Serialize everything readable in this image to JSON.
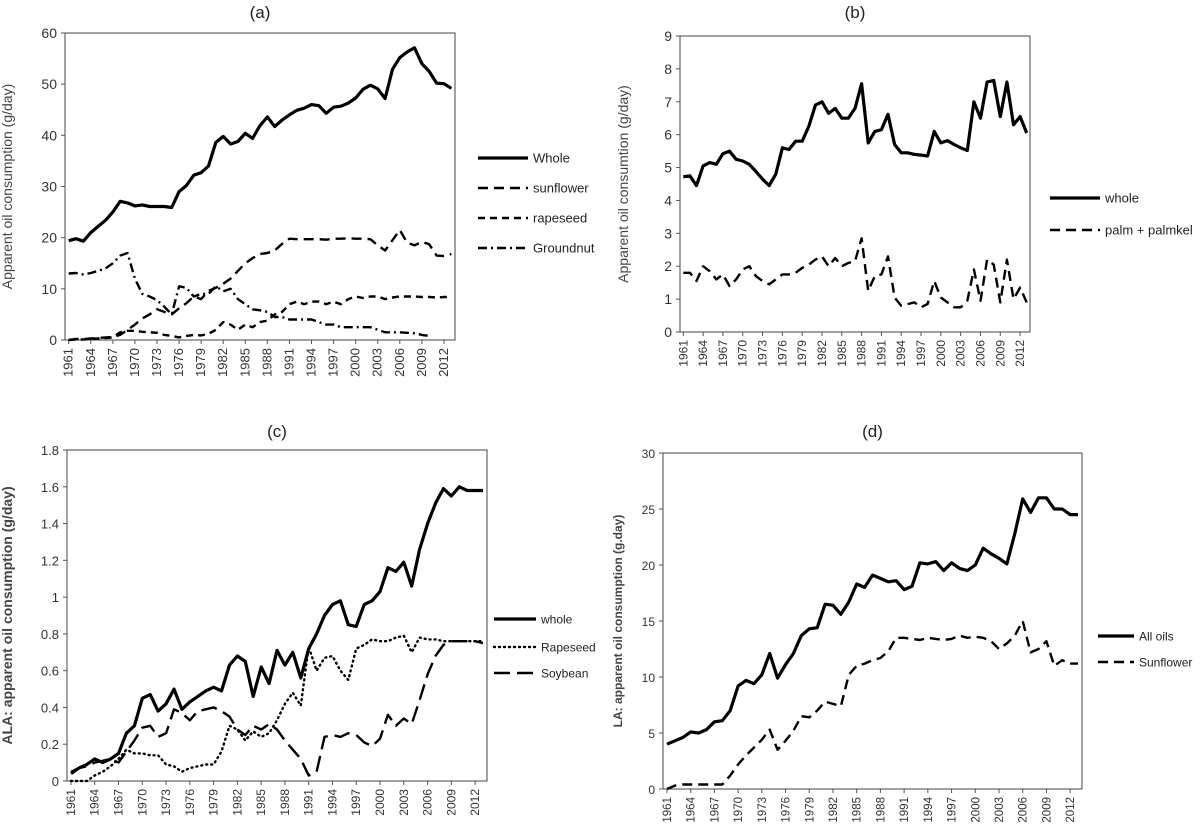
{
  "chart_data": [
    {
      "type": "line",
      "panel_label": "(a)",
      "xlabel": "",
      "ylabel": "Apparent oil consumption (g/day)",
      "ylim": [
        0,
        60
      ],
      "y_ticks": [
        0,
        10,
        20,
        30,
        40,
        50,
        60
      ],
      "x_tick_labels": [
        "1961",
        "1964",
        "1967",
        "1970",
        "1973",
        "1976",
        "1979",
        "1982",
        "1985",
        "1988",
        "1991",
        "1994",
        "1997",
        "2000",
        "2003",
        "2006",
        "2009",
        "2012"
      ],
      "grid": false,
      "legend_position": "right",
      "series": [
        {
          "name": "Whole",
          "style": "solid",
          "x_start": 1961,
          "values": [
            19.4,
            19.8,
            19.3,
            21.0,
            22.2,
            23.4,
            25.0,
            27.1,
            26.8,
            26.2,
            26.4,
            26.1,
            26.1,
            26.1,
            25.9,
            29.0,
            30.2,
            32.2,
            32.7,
            34.0,
            38.6,
            39.8,
            38.3,
            38.8,
            40.4,
            39.4,
            41.9,
            43.6,
            41.7,
            43.0,
            44.0,
            44.9,
            45.3,
            46.0,
            45.8,
            44.3,
            45.5,
            45.7,
            46.3,
            47.3,
            49.0,
            49.8,
            49.1,
            47.2,
            52.9,
            55.2,
            56.3,
            57.1,
            54.0,
            52.5,
            50.2,
            50.1,
            49.2
          ]
        },
        {
          "name": "sunflower",
          "style": "dashed",
          "x_start": 1961,
          "values": [
            0.0,
            0.2,
            0.2,
            0.3,
            0.4,
            0.5,
            0.6,
            1.0,
            2.0,
            3.0,
            4.2,
            5.0,
            6.0,
            5.5,
            5.0,
            6.2,
            7.2,
            8.5,
            8.0,
            9.6,
            10.2,
            11.0,
            12.0,
            13.5,
            15.0,
            16.0,
            16.8,
            17.0,
            17.5,
            18.8,
            19.8,
            19.7,
            19.7,
            19.7,
            19.7,
            19.6,
            19.8,
            19.8,
            19.9,
            19.8,
            19.8,
            19.7,
            18.5,
            17.5,
            19.5,
            21.5,
            19.0,
            18.5,
            19.2,
            18.7,
            16.5,
            16.4,
            16.8
          ]
        },
        {
          "name": "rapeseed",
          "style": "dashed-short",
          "x_start": 1961,
          "values": [
            0.0,
            0.1,
            0.1,
            0.2,
            0.3,
            0.4,
            0.5,
            1.5,
            1.8,
            1.8,
            1.6,
            1.5,
            1.4,
            1.0,
            0.8,
            0.5,
            0.8,
            1.0,
            0.9,
            1.2,
            2.0,
            3.5,
            3.0,
            2.0,
            3.0,
            2.5,
            3.5,
            3.8,
            5.0,
            5.5,
            7.0,
            7.5,
            7.0,
            7.5,
            7.5,
            7.0,
            7.5,
            7.0,
            8.0,
            8.5,
            8.2,
            8.5,
            8.5,
            8.0,
            8.3,
            8.5,
            8.5,
            8.5,
            8.4,
            8.4,
            8.3,
            8.4,
            8.4
          ]
        },
        {
          "name": "Groundnut",
          "style": "dash-dot",
          "x_start": 1961,
          "x_end": 2010,
          "values": [
            13.0,
            13.1,
            12.8,
            13.1,
            13.5,
            14.0,
            15.0,
            16.5,
            17.0,
            12.0,
            9.0,
            8.5,
            7.8,
            6.5,
            5.0,
            10.5,
            10.2,
            8.5,
            9.0,
            9.0,
            10.5,
            9.5,
            10.0,
            8.0,
            7.0,
            6.0,
            5.8,
            5.5,
            4.5,
            4.5,
            4.0,
            4.0,
            4.0,
            4.0,
            3.5,
            3.0,
            3.0,
            2.5,
            2.5,
            2.5,
            2.5,
            2.5,
            2.0,
            1.5,
            1.5,
            1.5,
            1.4,
            1.3,
            1.0,
            0.8
          ]
        }
      ]
    },
    {
      "type": "line",
      "panel_label": "(b)",
      "xlabel": "",
      "ylabel": "Apparent oil consumtion (g/day)",
      "ylim": [
        0,
        9
      ],
      "y_ticks": [
        0,
        1,
        2,
        3,
        4,
        5,
        6,
        7,
        8,
        9
      ],
      "x_tick_labels": [
        "1961",
        "1964",
        "1967",
        "1970",
        "1973",
        "1976",
        "1979",
        "1982",
        "1985",
        "1988",
        "1991",
        "1994",
        "1997",
        "2000",
        "2003",
        "2006",
        "2009",
        "2012"
      ],
      "grid": false,
      "legend_position": "right",
      "series": [
        {
          "name": "whole",
          "style": "solid",
          "x_start": 1961,
          "values": [
            4.72,
            4.75,
            4.45,
            5.05,
            5.15,
            5.1,
            5.42,
            5.5,
            5.25,
            5.2,
            5.1,
            4.88,
            4.65,
            4.45,
            4.8,
            5.6,
            5.55,
            5.8,
            5.8,
            6.25,
            6.9,
            7.0,
            6.65,
            6.8,
            6.5,
            6.5,
            6.8,
            7.55,
            5.75,
            6.1,
            6.15,
            6.62,
            5.7,
            5.45,
            5.45,
            5.4,
            5.38,
            5.35,
            6.1,
            5.75,
            5.82,
            5.7,
            5.6,
            5.52,
            7.0,
            6.5,
            7.6,
            7.65,
            6.55,
            7.6,
            6.3,
            6.55,
            6.05
          ]
        },
        {
          "name": "palm + palmkel",
          "style": "dashed",
          "x_start": 1961,
          "values": [
            1.8,
            1.8,
            1.55,
            2.0,
            1.85,
            1.6,
            1.75,
            1.4,
            1.6,
            1.9,
            2.0,
            1.7,
            1.55,
            1.45,
            1.6,
            1.75,
            1.75,
            1.8,
            1.95,
            2.05,
            2.2,
            2.3,
            2.0,
            2.25,
            2.0,
            2.1,
            2.15,
            2.85,
            1.25,
            1.7,
            1.75,
            2.3,
            1.05,
            0.8,
            0.85,
            0.9,
            0.75,
            0.85,
            1.55,
            1.05,
            0.9,
            0.75,
            0.75,
            0.95,
            1.9,
            0.95,
            2.2,
            2.05,
            0.9,
            2.2,
            1.0,
            1.35,
            0.9
          ]
        }
      ]
    },
    {
      "type": "line",
      "panel_label": "(c)",
      "xlabel": "",
      "ylabel": "ALA: apparent oil consumption (g/day)",
      "ylim": [
        0,
        1.8
      ],
      "y_ticks": [
        "0",
        "0.2",
        "0.4",
        "0.6",
        "0.8",
        "1",
        "1.2",
        "1.4",
        "1.6",
        "1.8"
      ],
      "x_tick_labels": [
        "1961",
        "1964",
        "1967",
        "1970",
        "1973",
        "1976",
        "1979",
        "1982",
        "1985",
        "1988",
        "1991",
        "1994",
        "1997",
        "2000",
        "2003",
        "2006",
        "2009",
        "2012"
      ],
      "grid": false,
      "legend_position": "right",
      "series": [
        {
          "name": "whole",
          "style": "solid",
          "x_start": 1961,
          "values": [
            0.04,
            0.07,
            0.09,
            0.12,
            0.1,
            0.12,
            0.15,
            0.26,
            0.3,
            0.45,
            0.47,
            0.38,
            0.42,
            0.5,
            0.39,
            0.43,
            0.46,
            0.49,
            0.51,
            0.49,
            0.63,
            0.68,
            0.65,
            0.46,
            0.62,
            0.53,
            0.71,
            0.63,
            0.7,
            0.56,
            0.72,
            0.8,
            0.9,
            0.96,
            0.98,
            0.85,
            0.84,
            0.96,
            0.98,
            1.03,
            1.16,
            1.14,
            1.19,
            1.06,
            1.26,
            1.4,
            1.51,
            1.59,
            1.55,
            1.6,
            1.58,
            1.58,
            1.58
          ]
        },
        {
          "name": "Rapeseed",
          "style": "dotted",
          "x_start": 1961,
          "values": [
            0.0,
            0.0,
            0.0,
            0.03,
            0.05,
            0.08,
            0.12,
            0.17,
            0.15,
            0.15,
            0.14,
            0.14,
            0.09,
            0.08,
            0.05,
            0.07,
            0.08,
            0.09,
            0.09,
            0.16,
            0.3,
            0.28,
            0.22,
            0.27,
            0.24,
            0.26,
            0.33,
            0.42,
            0.48,
            0.41,
            0.73,
            0.6,
            0.67,
            0.68,
            0.6,
            0.55,
            0.72,
            0.74,
            0.77,
            0.76,
            0.76,
            0.78,
            0.79,
            0.7,
            0.78,
            0.77,
            0.77,
            0.76,
            0.76,
            0.76,
            0.76,
            0.76,
            0.76
          ]
        },
        {
          "name": "Soybean",
          "style": "long-dash",
          "x_start": 1961,
          "values": [
            0.05,
            0.07,
            0.08,
            0.1,
            0.11,
            0.12,
            0.1,
            0.16,
            0.22,
            0.29,
            0.3,
            0.24,
            0.26,
            0.39,
            0.37,
            0.33,
            0.38,
            0.39,
            0.4,
            0.38,
            0.35,
            0.28,
            0.25,
            0.3,
            0.28,
            0.31,
            0.28,
            0.22,
            0.17,
            0.12,
            0.03,
            0.05,
            0.24,
            0.25,
            0.24,
            0.26,
            0.25,
            0.21,
            0.19,
            0.23,
            0.36,
            0.3,
            0.34,
            0.31,
            0.44,
            0.58,
            0.68,
            0.74,
            0.76,
            0.76,
            0.76,
            0.76,
            0.75
          ]
        }
      ]
    },
    {
      "type": "line",
      "panel_label": "(d)",
      "xlabel": "",
      "ylabel": "LA: apparent oil consumption  (g.day)",
      "ylim": [
        0,
        30
      ],
      "y_ticks": [
        0,
        5,
        10,
        15,
        20,
        25,
        30
      ],
      "x_tick_labels": [
        "1961",
        "1964",
        "1967",
        "1970",
        "1973",
        "1976",
        "1979",
        "1982",
        "1985",
        "1988",
        "1991",
        "1994",
        "1997",
        "2000",
        "2003",
        "2006",
        "2009",
        "2012"
      ],
      "grid": false,
      "legend_position": "right",
      "series": [
        {
          "name": "All oils",
          "style": "solid",
          "x_start": 1961,
          "values": [
            4.0,
            4.3,
            4.6,
            5.1,
            5.0,
            5.3,
            6.0,
            6.1,
            7.0,
            9.2,
            9.7,
            9.4,
            10.2,
            12.1,
            9.9,
            11.1,
            12.1,
            13.7,
            14.3,
            14.4,
            16.5,
            16.4,
            15.6,
            16.7,
            18.3,
            18.0,
            19.1,
            18.8,
            18.5,
            18.6,
            17.8,
            18.1,
            20.2,
            20.1,
            20.3,
            19.5,
            20.2,
            19.7,
            19.5,
            20.0,
            21.5,
            21.0,
            20.6,
            20.1,
            22.8,
            25.9,
            24.7,
            26.0,
            26.0,
            25.0,
            25.0,
            24.5,
            24.5
          ]
        },
        {
          "name": "Sunflower",
          "style": "dashed",
          "x_start": 1961,
          "values": [
            0.0,
            0.3,
            0.4,
            0.4,
            0.4,
            0.4,
            0.4,
            0.4,
            1.2,
            2.2,
            3.0,
            3.7,
            4.4,
            5.3,
            3.5,
            4.3,
            5.2,
            6.5,
            6.4,
            7.0,
            7.8,
            7.6,
            7.4,
            10.2,
            11.0,
            11.2,
            11.5,
            11.7,
            12.3,
            13.5,
            13.5,
            13.4,
            13.3,
            13.5,
            13.4,
            13.3,
            13.4,
            13.7,
            13.5,
            13.6,
            13.5,
            13.2,
            12.5,
            13.0,
            13.7,
            15.0,
            12.2,
            12.5,
            13.2,
            11.0,
            11.5,
            11.2,
            11.2
          ]
        }
      ]
    }
  ]
}
